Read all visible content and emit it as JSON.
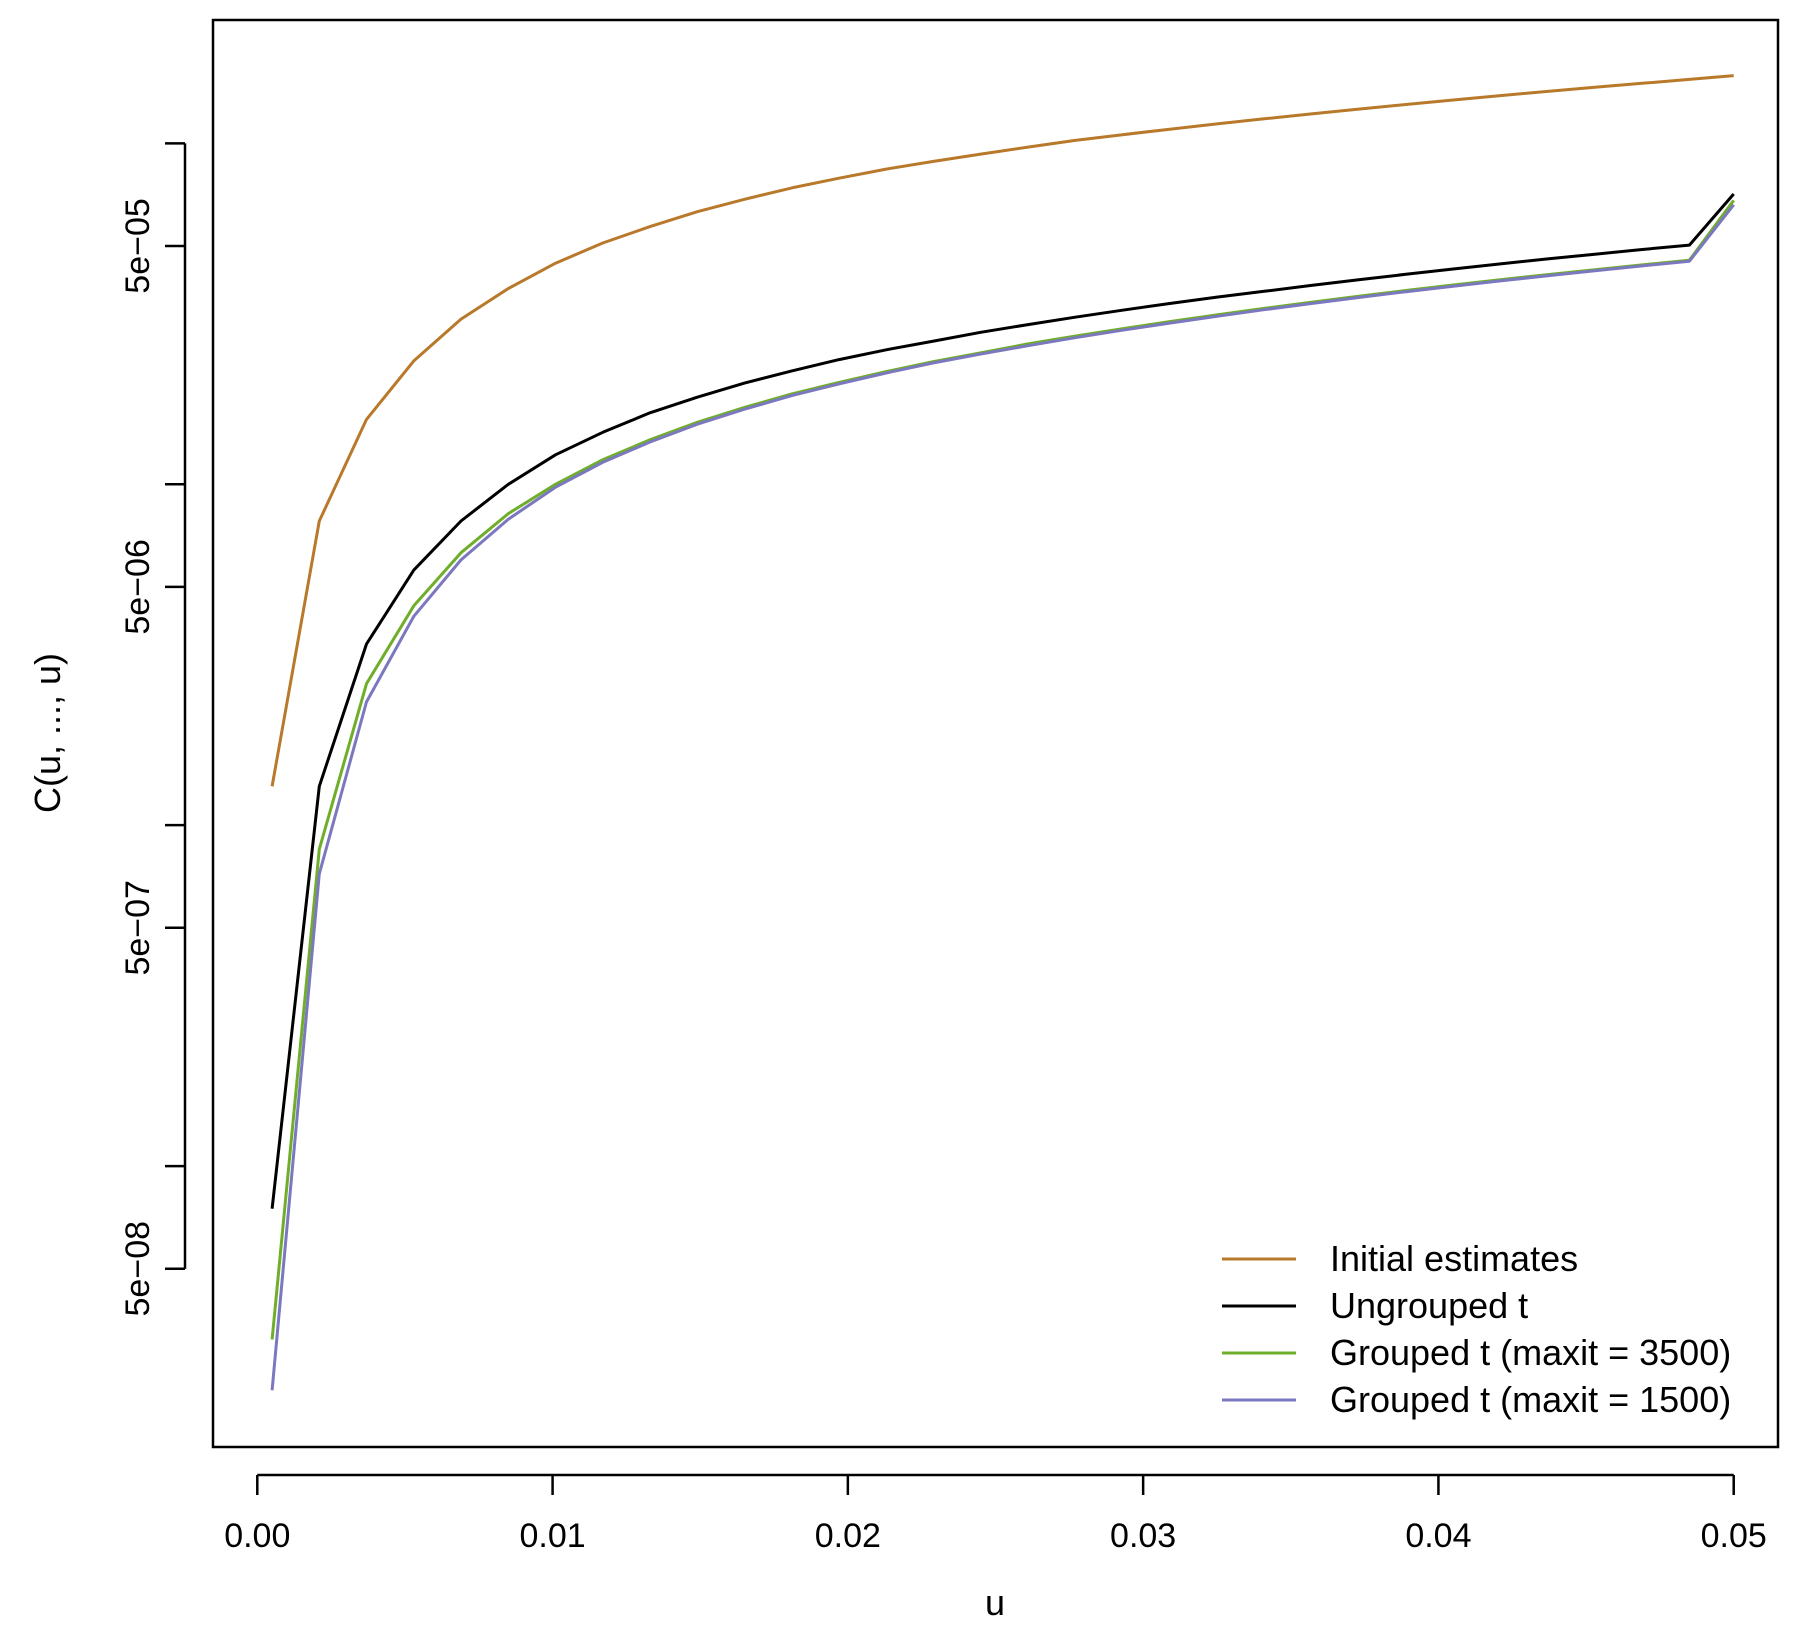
{
  "chart_data": {
    "type": "line",
    "title": "",
    "xlabel": "u",
    "ylabel": "C(u, ..., u)",
    "x_scale": "linear",
    "y_scale": "log",
    "xlim": [
      -0.0015,
      0.0515
    ],
    "ylim": [
      1.5e-08,
      0.00023
    ],
    "x_ticks": [
      0.0,
      0.01,
      0.02,
      0.03,
      0.04,
      0.05
    ],
    "x_tick_labels": [
      "0.00",
      "0.01",
      "0.02",
      "0.03",
      "0.04",
      "0.05"
    ],
    "y_ticks_major": [
      5e-08,
      5e-07,
      5e-06,
      5e-05
    ],
    "y_tick_labels": [
      "5e−08",
      "5e−07",
      "5e−06",
      "5e−05"
    ],
    "y_ticks_minor": [
      1e-07,
      1e-06,
      1e-05,
      0.0001
    ],
    "grid": false,
    "legend_position": "bottom-right",
    "x": [
      0.0005,
      0.0021,
      0.0037,
      0.0053,
      0.0069,
      0.0085,
      0.0101,
      0.0117,
      0.0133,
      0.0149,
      0.0165,
      0.0181,
      0.0197,
      0.0213,
      0.0229,
      0.0245,
      0.0261,
      0.0277,
      0.0293,
      0.0309,
      0.0325,
      0.0341,
      0.0357,
      0.0373,
      0.0389,
      0.0405,
      0.0421,
      0.0437,
      0.0453,
      0.0469,
      0.0485,
      0.05
    ],
    "series": [
      {
        "name": "Initial estimates",
        "color": "#B8792B",
        "values": [
          1.3e-06,
          7.8e-06,
          1.55e-05,
          2.3e-05,
          3.05e-05,
          3.75e-05,
          4.45e-05,
          5.1e-05,
          5.7e-05,
          6.3e-05,
          6.85e-05,
          7.4e-05,
          7.9e-05,
          8.4e-05,
          8.85e-05,
          9.3e-05,
          9.75e-05,
          0.000102,
          0.000106,
          0.00011,
          0.000114,
          0.000118,
          0.000122,
          0.000126,
          0.00013,
          0.000134,
          0.000138,
          0.000142,
          0.000146,
          0.00015,
          0.000154,
          0.000158
        ]
      },
      {
        "name": "Ungrouped t",
        "color": "#000000",
        "values": [
          7.5e-08,
          1.3e-06,
          3.4e-06,
          5.6e-06,
          7.8e-06,
          1e-05,
          1.22e-05,
          1.42e-05,
          1.62e-05,
          1.8e-05,
          1.98e-05,
          2.15e-05,
          2.32e-05,
          2.48e-05,
          2.63e-05,
          2.79e-05,
          2.94e-05,
          3.09e-05,
          3.24e-05,
          3.39e-05,
          3.54e-05,
          3.68e-05,
          3.83e-05,
          3.98e-05,
          4.13e-05,
          4.28e-05,
          4.43e-05,
          4.58e-05,
          4.73e-05,
          4.88e-05,
          5.03e-05,
          7.1e-05
        ]
      },
      {
        "name": "Grouped t (maxit = 3500)",
        "color": "#6FAE2B",
        "values": [
          3.1e-08,
          8.5e-07,
          2.6e-06,
          4.4e-06,
          6.3e-06,
          8.2e-06,
          1e-05,
          1.18e-05,
          1.35e-05,
          1.52e-05,
          1.68e-05,
          1.84e-05,
          1.99e-05,
          2.14e-05,
          2.29e-05,
          2.43e-05,
          2.58e-05,
          2.72e-05,
          2.86e-05,
          3e-05,
          3.14e-05,
          3.28e-05,
          3.42e-05,
          3.56e-05,
          3.7e-05,
          3.84e-05,
          3.98e-05,
          4.12e-05,
          4.26e-05,
          4.4e-05,
          4.54e-05,
          6.8e-05
        ]
      },
      {
        "name": "Grouped t (maxit = 1500)",
        "color": "#7B78C0",
        "values": [
          2.2e-08,
          7.2e-07,
          2.3e-06,
          4.1e-06,
          6e-06,
          7.9e-06,
          9.8e-06,
          1.16e-05,
          1.33e-05,
          1.5e-05,
          1.66e-05,
          1.82e-05,
          1.97e-05,
          2.12e-05,
          2.27e-05,
          2.41e-05,
          2.55e-05,
          2.69e-05,
          2.83e-05,
          2.97e-05,
          3.11e-05,
          3.25e-05,
          3.39e-05,
          3.53e-05,
          3.67e-05,
          3.81e-05,
          3.95e-05,
          4.09e-05,
          4.23e-05,
          4.37e-05,
          4.51e-05,
          6.6e-05
        ]
      }
    ]
  }
}
